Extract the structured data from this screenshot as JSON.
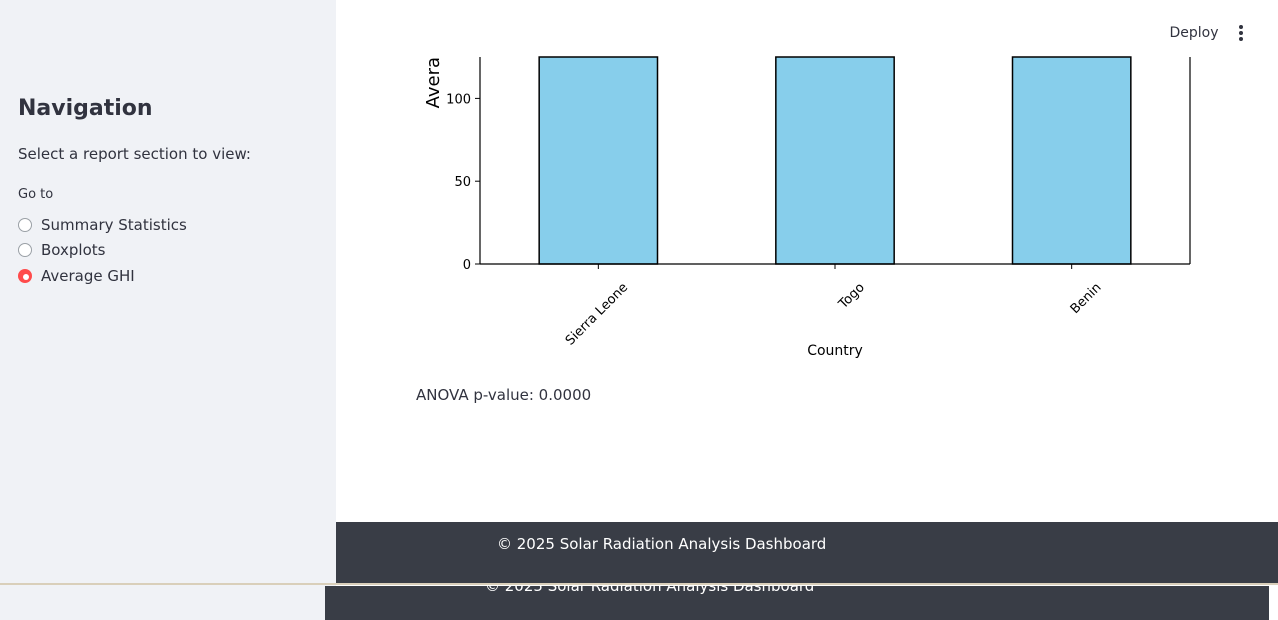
{
  "sidebar": {
    "title": "Navigation",
    "subtitle": "Select a report section to view:",
    "radio_label": "Go to",
    "options": [
      {
        "label": "Summary Statistics",
        "selected": false
      },
      {
        "label": "Boxplots",
        "selected": false
      },
      {
        "label": "Average GHI",
        "selected": true
      }
    ]
  },
  "toolbar": {
    "deploy_label": "Deploy",
    "menu_icon": "kebab-menu-icon"
  },
  "chart_data": {
    "type": "bar",
    "categories": [
      "Sierra Leone",
      "Togo",
      "Benin"
    ],
    "values": [
      125,
      125,
      125
    ],
    "xlabel": "Country",
    "ylabel": "Avera",
    "yticks": [
      0,
      50,
      100
    ],
    "ylim": [
      0,
      125
    ],
    "bar_color": "#87ceeb",
    "edge_color": "#000000",
    "note": ""
  },
  "anova": {
    "text": "ANOVA p-value: 0.0000"
  },
  "footer": {
    "text": "© 2025 Solar Radiation Analysis Dashboard",
    "bg_color": "#393d46"
  },
  "colors": {
    "accent": "#ff4b4b",
    "sidebar_bg": "#f0f2f6"
  }
}
